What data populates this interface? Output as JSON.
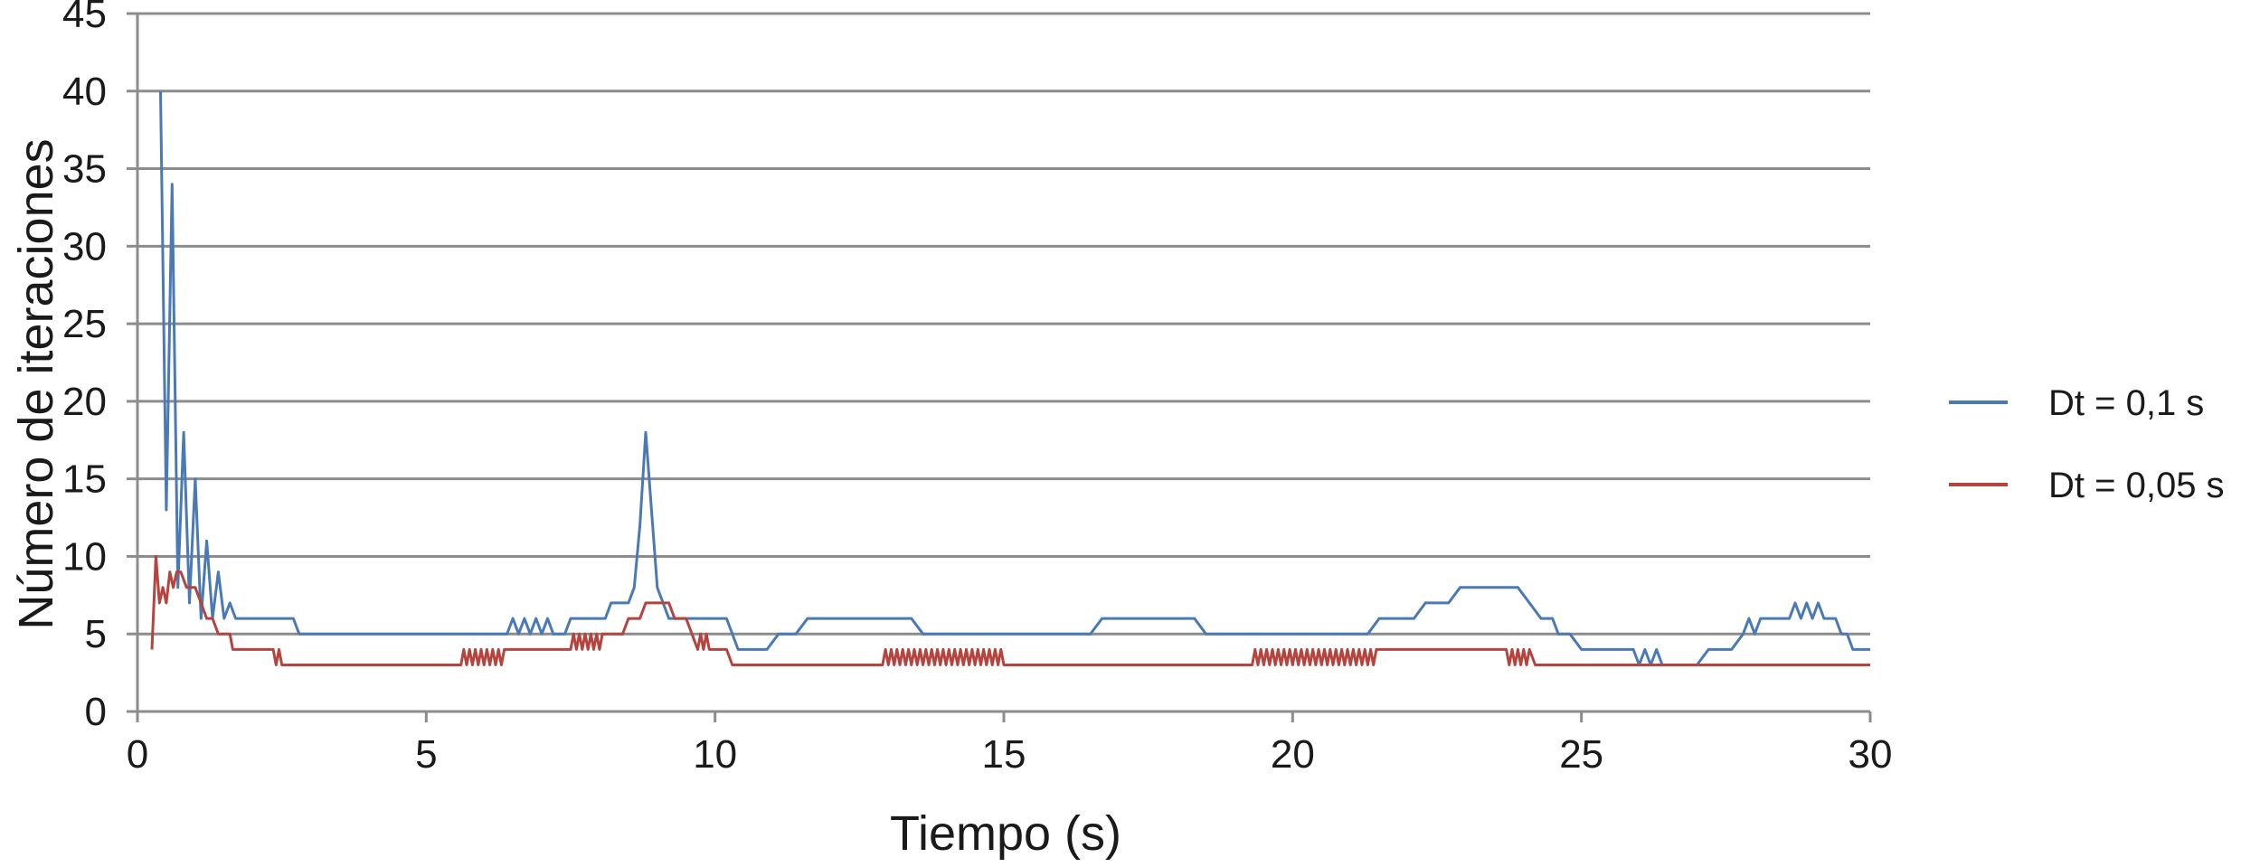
{
  "chart_data": {
    "type": "line",
    "xlabel": "Tiempo (s)",
    "ylabel": "Número de iteraciones",
    "xlim": [
      0,
      30
    ],
    "ylim": [
      0,
      45
    ],
    "xticks": [
      0,
      5,
      10,
      15,
      20,
      25,
      30
    ],
    "yticks": [
      0,
      5,
      10,
      15,
      20,
      25,
      30,
      35,
      40,
      45
    ],
    "grid": "horizontal",
    "legend_position": "right",
    "series": [
      {
        "name": "Dt = 0,1 s",
        "color": "#4a7ab5",
        "points": [
          [
            0.4,
            40
          ],
          [
            0.5,
            13
          ],
          [
            0.6,
            34
          ],
          [
            0.7,
            8
          ],
          [
            0.8,
            18
          ],
          [
            0.9,
            7
          ],
          [
            1.0,
            15
          ],
          [
            1.1,
            6
          ],
          [
            1.2,
            11
          ],
          [
            1.3,
            6
          ],
          [
            1.4,
            9
          ],
          [
            1.5,
            6
          ],
          [
            1.6,
            7
          ],
          [
            1.7,
            6
          ],
          [
            2.7,
            6
          ],
          [
            2.8,
            5
          ],
          [
            6.4,
            5
          ],
          [
            6.5,
            6
          ],
          [
            6.6,
            5
          ],
          [
            6.7,
            6
          ],
          [
            6.8,
            5
          ],
          [
            6.9,
            6
          ],
          [
            7.0,
            5
          ],
          [
            7.1,
            6
          ],
          [
            7.2,
            5
          ],
          [
            7.4,
            5
          ],
          [
            7.5,
            6
          ],
          [
            8.1,
            6
          ],
          [
            8.2,
            7
          ],
          [
            8.5,
            7
          ],
          [
            8.6,
            8
          ],
          [
            8.7,
            12
          ],
          [
            8.8,
            18
          ],
          [
            8.9,
            13
          ],
          [
            9.0,
            8
          ],
          [
            9.1,
            7
          ],
          [
            9.2,
            6
          ],
          [
            10.2,
            6
          ],
          [
            10.4,
            4
          ],
          [
            10.9,
            4
          ],
          [
            11.1,
            5
          ],
          [
            11.4,
            5
          ],
          [
            11.6,
            6
          ],
          [
            13.4,
            6
          ],
          [
            13.6,
            5
          ],
          [
            16.5,
            5
          ],
          [
            16.7,
            6
          ],
          [
            18.3,
            6
          ],
          [
            18.5,
            5
          ],
          [
            21.3,
            5
          ],
          [
            21.5,
            6
          ],
          [
            22.1,
            6
          ],
          [
            22.3,
            7
          ],
          [
            22.7,
            7
          ],
          [
            22.9,
            8
          ],
          [
            23.9,
            8
          ],
          [
            24.1,
            7
          ],
          [
            24.3,
            6
          ],
          [
            24.5,
            6
          ],
          [
            24.6,
            5
          ],
          [
            24.8,
            5
          ],
          [
            25.0,
            4
          ],
          [
            25.9,
            4
          ],
          [
            26.0,
            3
          ],
          [
            26.1,
            4
          ],
          [
            26.2,
            3
          ],
          [
            26.3,
            4
          ],
          [
            26.4,
            3
          ],
          [
            27.0,
            3
          ],
          [
            27.2,
            4
          ],
          [
            27.6,
            4
          ],
          [
            27.8,
            5
          ],
          [
            27.9,
            6
          ],
          [
            28.0,
            5
          ],
          [
            28.1,
            6
          ],
          [
            28.6,
            6
          ],
          [
            28.7,
            7
          ],
          [
            28.8,
            6
          ],
          [
            28.9,
            7
          ],
          [
            29.0,
            6
          ],
          [
            29.1,
            7
          ],
          [
            29.2,
            6
          ],
          [
            29.4,
            6
          ],
          [
            29.5,
            5
          ],
          [
            29.6,
            5
          ],
          [
            29.7,
            4
          ],
          [
            30.0,
            4
          ]
        ]
      },
      {
        "name": "Dt = 0,05 s",
        "color": "#b5443f",
        "points": [
          [
            0.25,
            4
          ],
          [
            0.32,
            10
          ],
          [
            0.38,
            7
          ],
          [
            0.44,
            8
          ],
          [
            0.5,
            7
          ],
          [
            0.56,
            9
          ],
          [
            0.62,
            8
          ],
          [
            0.68,
            9
          ],
          [
            0.75,
            9
          ],
          [
            0.85,
            8
          ],
          [
            1.0,
            8
          ],
          [
            1.1,
            7
          ],
          [
            1.2,
            6
          ],
          [
            1.3,
            6
          ],
          [
            1.4,
            5
          ],
          [
            1.6,
            5
          ],
          [
            1.65,
            4
          ],
          [
            2.35,
            4
          ],
          [
            2.4,
            3
          ],
          [
            2.45,
            4
          ],
          [
            2.5,
            3
          ],
          [
            5.6,
            3
          ],
          [
            5.65,
            4
          ],
          [
            5.7,
            3
          ],
          [
            5.75,
            4
          ],
          [
            5.8,
            3
          ],
          [
            5.85,
            4
          ],
          [
            5.9,
            3
          ],
          [
            5.95,
            4
          ],
          [
            6.0,
            3
          ],
          [
            6.05,
            4
          ],
          [
            6.1,
            3
          ],
          [
            6.15,
            4
          ],
          [
            6.2,
            3
          ],
          [
            6.25,
            4
          ],
          [
            6.3,
            3
          ],
          [
            6.35,
            4
          ],
          [
            6.4,
            4
          ],
          [
            7.5,
            4
          ],
          [
            7.55,
            5
          ],
          [
            7.6,
            4
          ],
          [
            7.65,
            5
          ],
          [
            7.7,
            4
          ],
          [
            7.75,
            5
          ],
          [
            7.8,
            4
          ],
          [
            7.85,
            5
          ],
          [
            7.9,
            4
          ],
          [
            7.95,
            5
          ],
          [
            8.0,
            4
          ],
          [
            8.05,
            5
          ],
          [
            8.4,
            5
          ],
          [
            8.5,
            6
          ],
          [
            8.7,
            6
          ],
          [
            8.8,
            7
          ],
          [
            9.2,
            7
          ],
          [
            9.3,
            6
          ],
          [
            9.5,
            6
          ],
          [
            9.6,
            5
          ],
          [
            9.7,
            4
          ],
          [
            9.75,
            5
          ],
          [
            9.8,
            4
          ],
          [
            9.85,
            5
          ],
          [
            9.9,
            4
          ],
          [
            10.0,
            4
          ],
          [
            10.2,
            4
          ],
          [
            10.3,
            3
          ],
          [
            12.9,
            3
          ],
          [
            12.95,
            4
          ],
          [
            13.0,
            3
          ],
          [
            13.05,
            4
          ],
          [
            13.1,
            3
          ],
          [
            13.15,
            4
          ],
          [
            13.2,
            3
          ],
          [
            13.25,
            4
          ],
          [
            13.3,
            3
          ],
          [
            13.35,
            4
          ],
          [
            13.4,
            3
          ],
          [
            13.45,
            4
          ],
          [
            13.5,
            3
          ],
          [
            13.55,
            4
          ],
          [
            13.6,
            3
          ],
          [
            13.65,
            4
          ],
          [
            13.7,
            3
          ],
          [
            13.75,
            4
          ],
          [
            13.8,
            3
          ],
          [
            13.85,
            4
          ],
          [
            13.9,
            3
          ],
          [
            13.95,
            4
          ],
          [
            14.0,
            3
          ],
          [
            14.05,
            4
          ],
          [
            14.1,
            3
          ],
          [
            14.15,
            4
          ],
          [
            14.2,
            3
          ],
          [
            14.25,
            4
          ],
          [
            14.3,
            3
          ],
          [
            14.35,
            4
          ],
          [
            14.4,
            3
          ],
          [
            14.45,
            4
          ],
          [
            14.5,
            3
          ],
          [
            14.55,
            4
          ],
          [
            14.6,
            3
          ],
          [
            14.65,
            4
          ],
          [
            14.7,
            3
          ],
          [
            14.75,
            4
          ],
          [
            14.8,
            3
          ],
          [
            14.85,
            4
          ],
          [
            14.9,
            3
          ],
          [
            14.95,
            4
          ],
          [
            15.0,
            3
          ],
          [
            19.3,
            3
          ],
          [
            19.35,
            4
          ],
          [
            19.4,
            3
          ],
          [
            19.45,
            4
          ],
          [
            19.5,
            3
          ],
          [
            19.55,
            4
          ],
          [
            19.6,
            3
          ],
          [
            19.65,
            4
          ],
          [
            19.7,
            3
          ],
          [
            19.75,
            4
          ],
          [
            19.8,
            3
          ],
          [
            19.85,
            4
          ],
          [
            19.9,
            3
          ],
          [
            19.95,
            4
          ],
          [
            20.0,
            3
          ],
          [
            20.05,
            4
          ],
          [
            20.1,
            3
          ],
          [
            20.15,
            4
          ],
          [
            20.2,
            3
          ],
          [
            20.25,
            4
          ],
          [
            20.3,
            3
          ],
          [
            20.35,
            4
          ],
          [
            20.4,
            3
          ],
          [
            20.45,
            4
          ],
          [
            20.5,
            3
          ],
          [
            20.55,
            4
          ],
          [
            20.6,
            3
          ],
          [
            20.65,
            4
          ],
          [
            20.7,
            3
          ],
          [
            20.75,
            4
          ],
          [
            20.8,
            3
          ],
          [
            20.85,
            4
          ],
          [
            20.9,
            3
          ],
          [
            20.95,
            4
          ],
          [
            21.0,
            3
          ],
          [
            21.05,
            4
          ],
          [
            21.1,
            3
          ],
          [
            21.15,
            4
          ],
          [
            21.2,
            3
          ],
          [
            21.25,
            4
          ],
          [
            21.3,
            3
          ],
          [
            21.35,
            4
          ],
          [
            21.4,
            3
          ],
          [
            21.45,
            4
          ],
          [
            21.5,
            4
          ],
          [
            23.7,
            4
          ],
          [
            23.75,
            3
          ],
          [
            23.8,
            4
          ],
          [
            23.85,
            3
          ],
          [
            23.9,
            4
          ],
          [
            23.95,
            3
          ],
          [
            24.0,
            4
          ],
          [
            24.05,
            3
          ],
          [
            24.1,
            4
          ],
          [
            24.2,
            3
          ],
          [
            30.0,
            3
          ]
        ]
      }
    ]
  }
}
